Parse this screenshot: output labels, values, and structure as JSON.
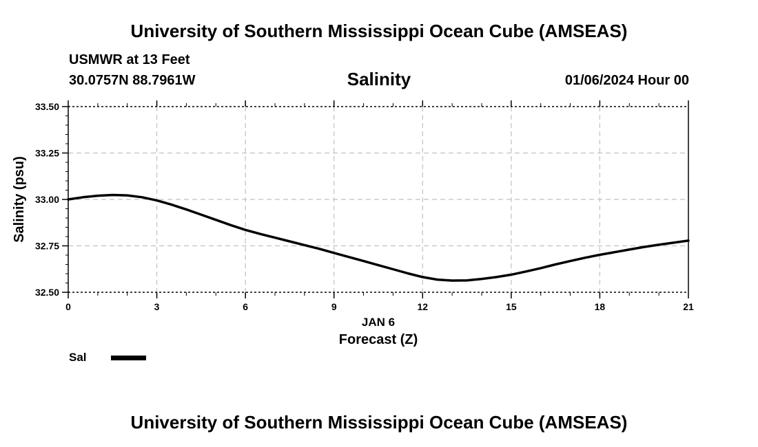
{
  "header": {
    "title": "University of Southern Mississippi Ocean Cube (AMSEAS)",
    "station": "USMWR at 13 Feet",
    "coords": "30.0757N  88.7961W",
    "parameter": "Salinity",
    "datetime": "01/06/2024 Hour 00"
  },
  "footer": {
    "title": "University of Southern Mississippi Ocean Cube (AMSEAS)"
  },
  "legend": {
    "label": "Sal",
    "color": "#000000"
  },
  "chart_data": {
    "type": "line",
    "title": "Salinity",
    "xlabel": "Forecast (Z)",
    "xsublabel": "JAN 6",
    "ylabel": "Salinity (psu)",
    "xlim": [
      0,
      21
    ],
    "ylim": [
      32.5,
      33.5
    ],
    "xticks": [
      0,
      3,
      6,
      9,
      12,
      15,
      18,
      21
    ],
    "xtick_labels": [
      "0",
      "3",
      "6",
      "9",
      "12",
      "15",
      "18",
      "21"
    ],
    "yticks": [
      32.5,
      32.75,
      33.0,
      33.25,
      33.5
    ],
    "ytick_labels": [
      "32.50",
      "32.75",
      "33.00",
      "33.25",
      "33.50"
    ],
    "grid": true,
    "series": [
      {
        "name": "Sal",
        "color": "#000000",
        "x": [
          0,
          0.5,
          1,
          1.5,
          2,
          2.5,
          3,
          3.5,
          4,
          4.5,
          5,
          5.5,
          6,
          6.5,
          7,
          7.5,
          8,
          8.5,
          9,
          9.5,
          10,
          10.5,
          11,
          11.5,
          12,
          12.5,
          13,
          13.5,
          14,
          14.5,
          15,
          15.5,
          16,
          16.5,
          17,
          17.5,
          18,
          18.5,
          19,
          19.5,
          20,
          20.5,
          21
        ],
        "values": [
          33.0,
          33.012,
          33.02,
          33.024,
          33.022,
          33.012,
          32.995,
          32.972,
          32.946,
          32.918,
          32.89,
          32.862,
          32.836,
          32.814,
          32.794,
          32.774,
          32.754,
          32.734,
          32.712,
          32.69,
          32.668,
          32.646,
          32.624,
          32.602,
          32.582,
          32.568,
          32.563,
          32.564,
          32.572,
          32.582,
          32.595,
          32.612,
          32.63,
          32.65,
          32.668,
          32.686,
          32.702,
          32.716,
          32.73,
          32.744,
          32.756,
          32.767,
          32.778
        ]
      }
    ]
  }
}
